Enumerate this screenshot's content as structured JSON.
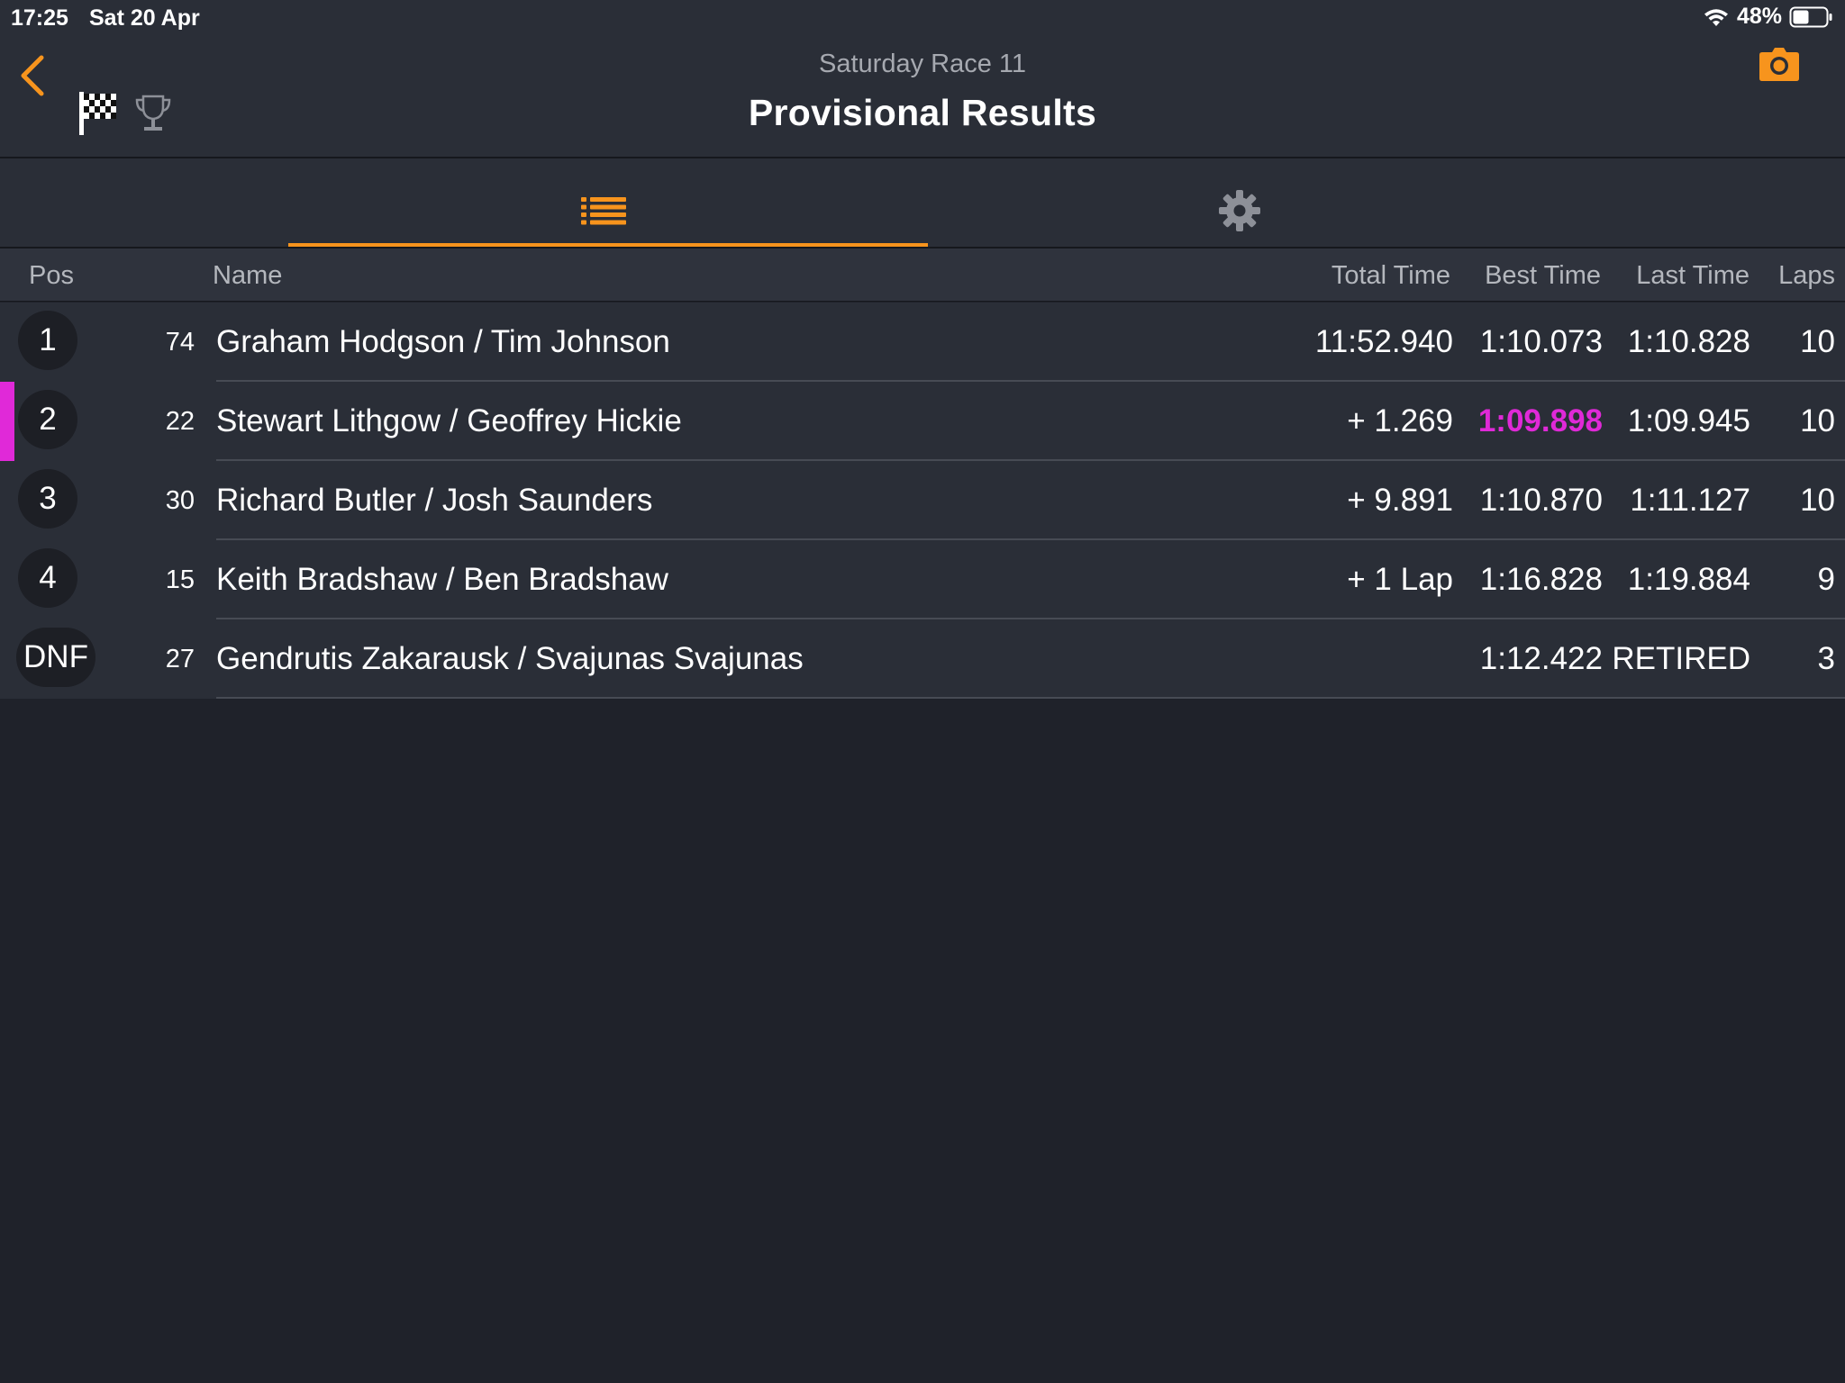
{
  "status_bar": {
    "time": "17:25",
    "date": "Sat 20 Apr",
    "battery": "48%"
  },
  "header": {
    "subtitle": "Saturday Race 11",
    "title": "Provisional Results"
  },
  "icons": {
    "back": "chevron-left-icon",
    "flag": "checkered-flag-icon",
    "trophy": "trophy-icon",
    "camera": "camera-icon",
    "list": "list-icon",
    "settings": "gear-icon"
  },
  "colors": {
    "accent": "#f7941d",
    "best_lap": "#e029d8",
    "background": "#1f222a",
    "row": "#2a2e37"
  },
  "table": {
    "columns": {
      "pos": "Pos",
      "name": "Name",
      "total": "Total Time",
      "best": "Best Time",
      "last": "Last Time",
      "laps": "Laps"
    },
    "rows": [
      {
        "pos": "1",
        "num": "74",
        "name": "Graham Hodgson / Tim Johnson",
        "total": "11:52.940",
        "best": "1:10.073",
        "last": "1:10.828",
        "laps": "10",
        "fastest": false
      },
      {
        "pos": "2",
        "num": "22",
        "name": "Stewart Lithgow / Geoffrey Hickie",
        "total": "+ 1.269",
        "best": "1:09.898",
        "last": "1:09.945",
        "laps": "10",
        "fastest": true
      },
      {
        "pos": "3",
        "num": "30",
        "name": "Richard Butler / Josh Saunders",
        "total": "+ 9.891",
        "best": "1:10.870",
        "last": "1:11.127",
        "laps": "10",
        "fastest": false
      },
      {
        "pos": "4",
        "num": "15",
        "name": "Keith Bradshaw / Ben Bradshaw",
        "total": "+ 1 Lap",
        "best": "1:16.828",
        "last": "1:19.884",
        "laps": "9",
        "fastest": false
      },
      {
        "pos": "DNF",
        "num": "27",
        "name": "Gendrutis Zakarausk / Svajunas Svajunas",
        "total": "",
        "best": "1:12.422",
        "last": "RETIRED",
        "laps": "3",
        "fastest": false
      }
    ]
  }
}
